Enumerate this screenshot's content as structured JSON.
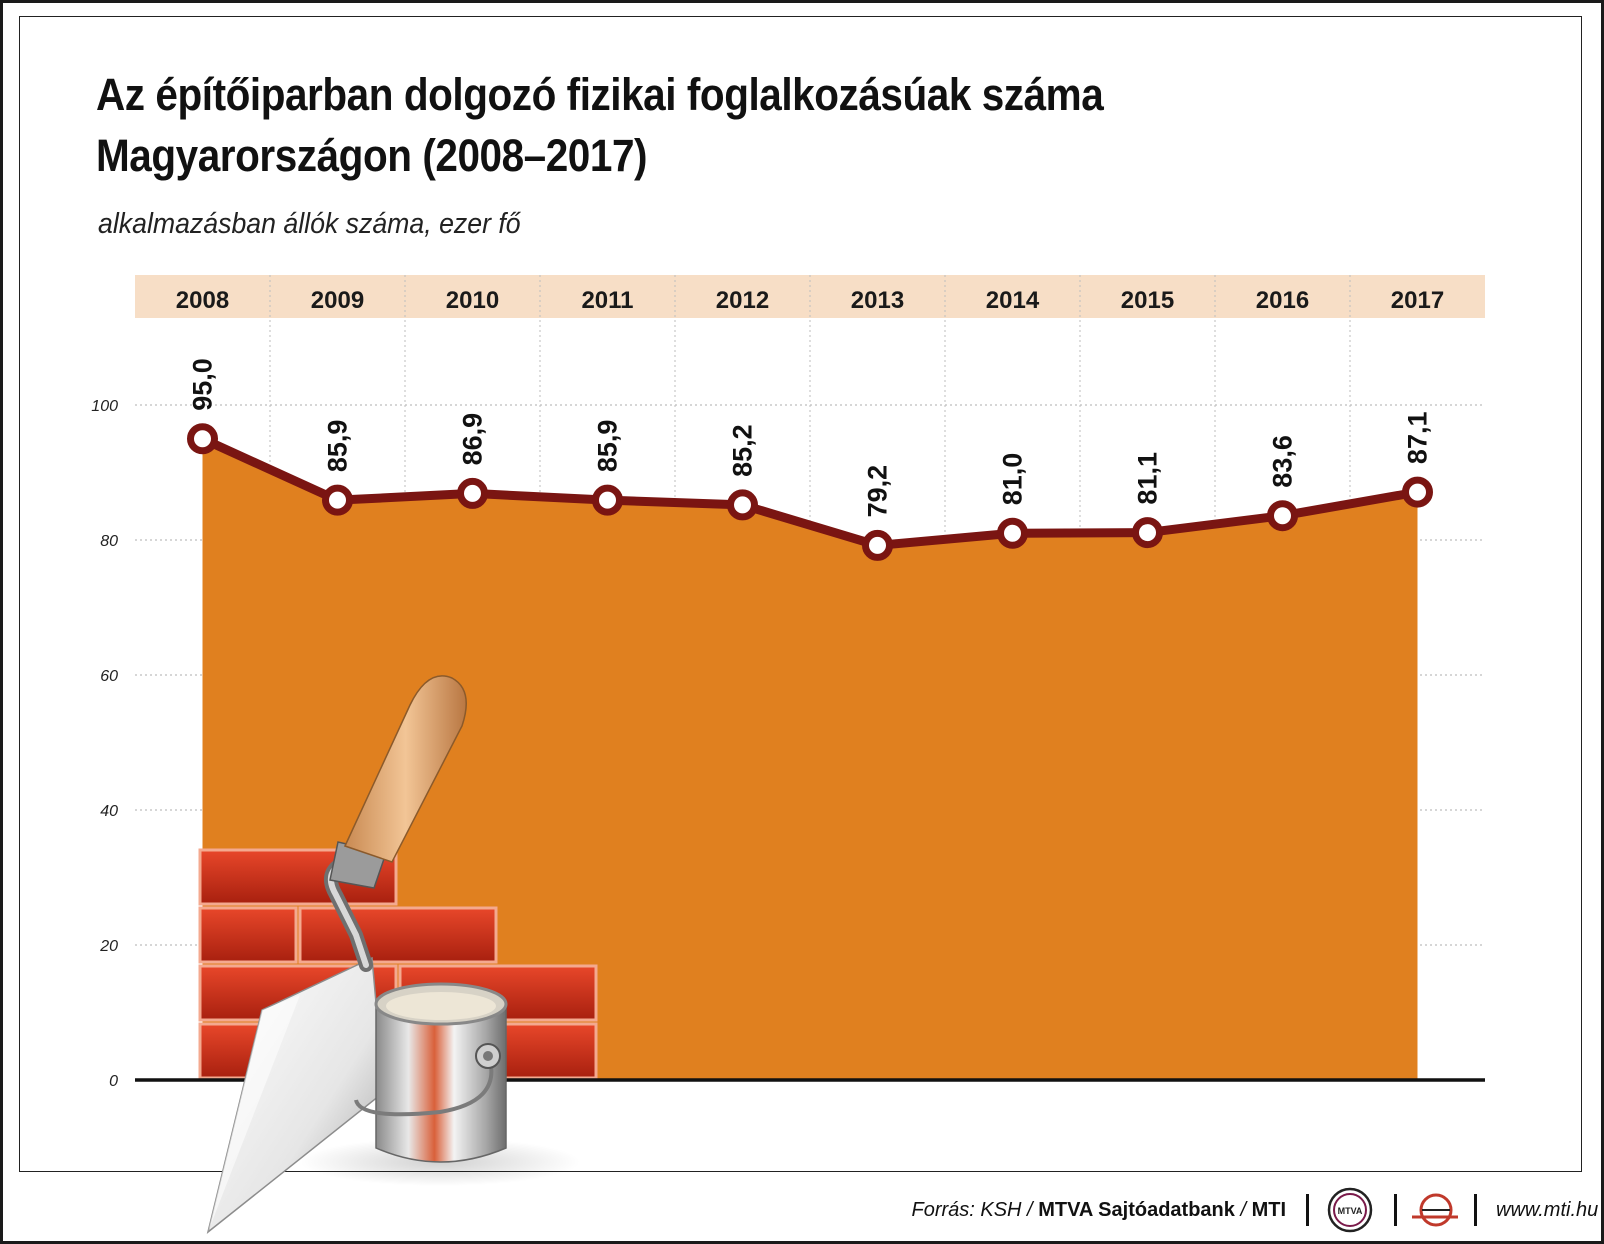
{
  "header": {
    "title_line1": "Az építőiparban dolgozó fizikai foglalkozásúak száma",
    "title_line2": "Magyarországon (2008–2017)",
    "subtitle": "alkalmazásban állók száma, ezer fő"
  },
  "chart_data": {
    "type": "area",
    "title": "Az építőiparban dolgozó fizikai foglalkozásúak száma Magyarországon (2008–2017)",
    "subtitle": "alkalmazásban állók száma, ezer fő",
    "categories": [
      "2008",
      "2009",
      "2010",
      "2011",
      "2012",
      "2013",
      "2014",
      "2015",
      "2016",
      "2017"
    ],
    "values": [
      95.0,
      85.9,
      86.9,
      85.9,
      85.2,
      79.2,
      81.0,
      81.1,
      83.6,
      87.1
    ],
    "value_labels": [
      "95,0",
      "85,9",
      "86,9",
      "85,9",
      "85,2",
      "79,2",
      "81,0",
      "81,1",
      "83,6",
      "87,1"
    ],
    "yticks": [
      0,
      20,
      40,
      60,
      80,
      100
    ],
    "ytick_labels": [
      "0",
      "20",
      "40",
      "60",
      "80",
      "100"
    ],
    "ylim": [
      0,
      100
    ],
    "grid": true,
    "colors": {
      "area": "#E0801F",
      "line": "#7A1512",
      "marker_fill": "#FFFFFF",
      "header_band": "#F7DEC6",
      "gridline": "#BDBDBD"
    }
  },
  "footer": {
    "source_prefix": "Forrás: KSH / ",
    "source_bold": "MTVA Sajtóadatbank",
    "source_sep": " / ",
    "source_bold2": "MTI",
    "logo_text": "MTVA",
    "url": "www.mti.hu"
  },
  "illustration": {
    "icons": [
      "brick-wall-icon",
      "trowel-icon",
      "paint-bucket-icon"
    ]
  }
}
